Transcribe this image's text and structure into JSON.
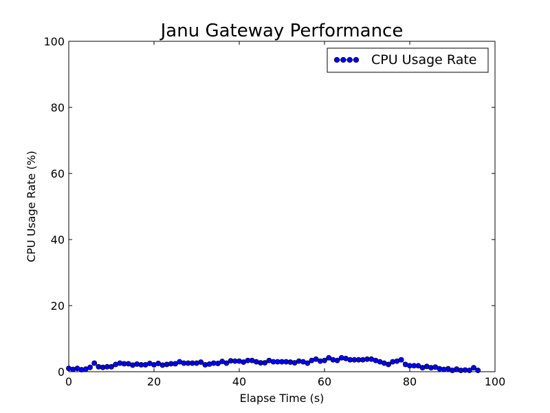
{
  "chart_data": {
    "type": "line",
    "title": "Janu Gateway Performance",
    "xlabel": "Elapse Time (s)",
    "ylabel": "CPU Usage Rate (%)",
    "xlim": [
      0,
      100
    ],
    "ylim": [
      0,
      100
    ],
    "xticks": [
      0,
      20,
      40,
      60,
      80,
      100
    ],
    "yticks": [
      0,
      20,
      40,
      60,
      80,
      100
    ],
    "grid": false,
    "legend_position": "top-right",
    "series": [
      {
        "name": "CPU Usage Rate",
        "color": "#0000ff",
        "marker": "circle",
        "x": [
          0,
          1,
          2,
          3,
          4,
          5,
          6,
          7,
          8,
          9,
          10,
          11,
          12,
          13,
          14,
          15,
          16,
          17,
          18,
          19,
          20,
          21,
          22,
          23,
          24,
          25,
          26,
          27,
          28,
          29,
          30,
          31,
          32,
          33,
          34,
          35,
          36,
          37,
          38,
          39,
          40,
          41,
          42,
          43,
          44,
          45,
          46,
          47,
          48,
          49,
          50,
          51,
          52,
          53,
          54,
          55,
          56,
          57,
          58,
          59,
          60,
          61,
          62,
          63,
          64,
          65,
          66,
          67,
          68,
          69,
          70,
          71,
          72,
          73,
          74,
          75,
          76,
          77,
          78,
          79,
          80,
          81,
          82,
          83,
          84,
          85,
          86,
          87,
          88,
          89,
          90,
          91,
          92,
          93,
          94,
          95,
          96
        ],
        "y": [
          1.0,
          0.7,
          1.0,
          0.6,
          0.8,
          1.3,
          2.6,
          1.5,
          1.3,
          1.5,
          1.5,
          2.2,
          2.6,
          2.4,
          2.4,
          2.0,
          2.3,
          2.1,
          2.1,
          2.5,
          2.1,
          2.5,
          2.0,
          2.2,
          2.4,
          2.4,
          3.0,
          2.6,
          2.6,
          2.6,
          2.6,
          2.9,
          2.1,
          2.3,
          2.6,
          2.5,
          3.1,
          2.6,
          3.3,
          3.2,
          3.2,
          2.9,
          3.4,
          3.4,
          3.0,
          2.7,
          2.7,
          3.4,
          3.0,
          3.0,
          3.0,
          3.0,
          2.9,
          2.7,
          3.2,
          3.0,
          2.6,
          3.4,
          3.8,
          3.2,
          3.4,
          4.2,
          3.6,
          3.4,
          4.2,
          4.0,
          3.6,
          3.6,
          3.6,
          3.6,
          3.8,
          3.8,
          3.4,
          3.0,
          2.6,
          2.2,
          3.0,
          3.2,
          3.6,
          2.2,
          1.8,
          1.8,
          1.8,
          1.2,
          1.6,
          1.2,
          1.4,
          0.9,
          0.7,
          0.9,
          0.4,
          0.8,
          0.4,
          0.5,
          0.4,
          1.2,
          0.4
        ]
      }
    ]
  }
}
